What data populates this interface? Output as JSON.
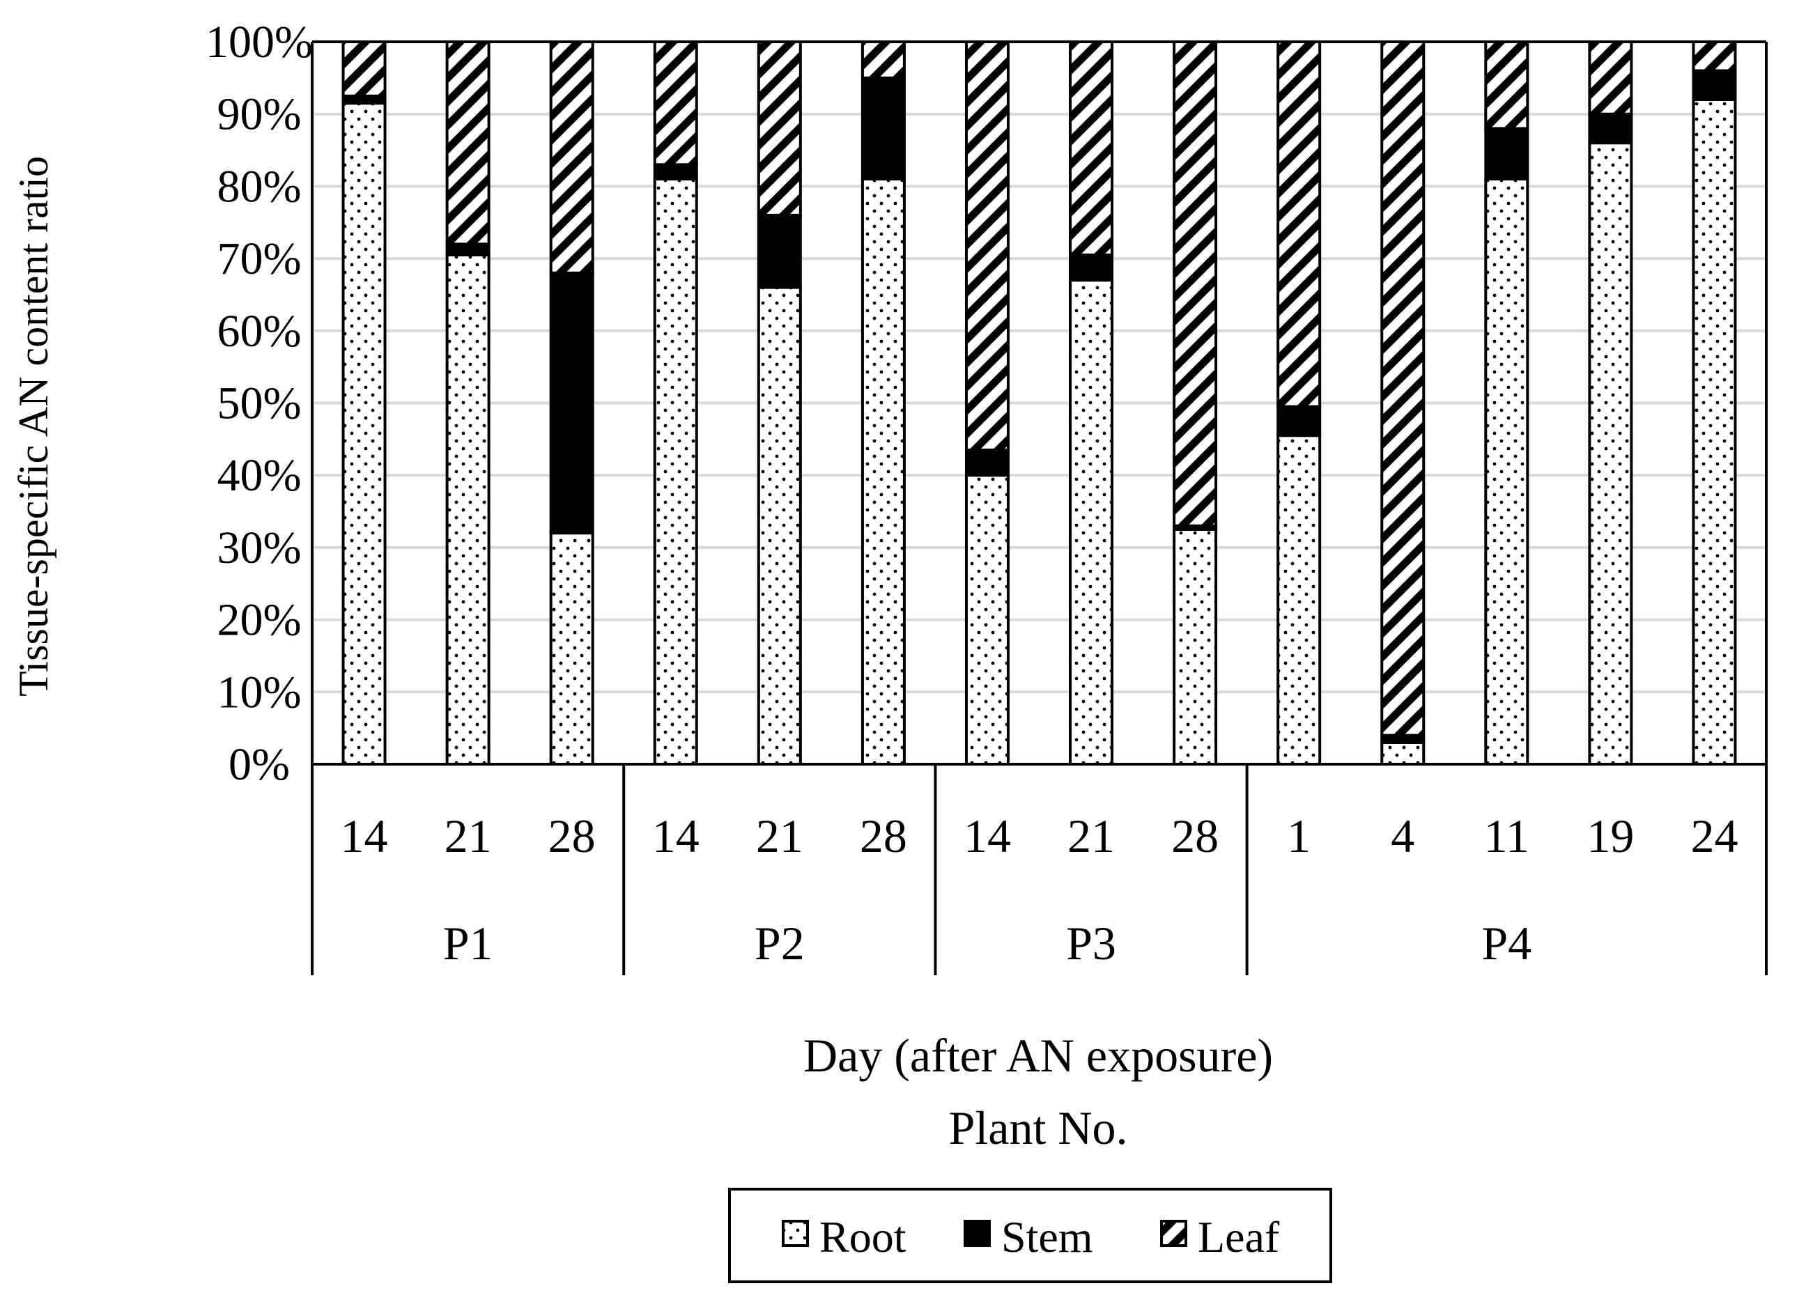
{
  "chart_data": {
    "type": "bar",
    "stacked": true,
    "ylabel": "Tissue-specific AN content ratio",
    "xlabel_line1": "Day (after AN exposure)",
    "xlabel_line2": "Plant No.",
    "ylim": [
      0,
      100
    ],
    "ytick_labels": [
      "0%",
      "10%",
      "20%",
      "30%",
      "40%",
      "50%",
      "60%",
      "70%",
      "80%",
      "90%",
      "100%"
    ],
    "grid": true,
    "legend_position": "bottom-center",
    "groups": [
      {
        "label": "P1",
        "days": [
          "14",
          "21",
          "28"
        ]
      },
      {
        "label": "P2",
        "days": [
          "14",
          "21",
          "28"
        ]
      },
      {
        "label": "P3",
        "days": [
          "14",
          "21",
          "28"
        ]
      },
      {
        "label": "P4",
        "days": [
          "1",
          "4",
          "11",
          "19",
          "24"
        ]
      }
    ],
    "categories": [
      "14",
      "21",
      "28",
      "14",
      "21",
      "28",
      "14",
      "21",
      "28",
      "1",
      "4",
      "11",
      "19",
      "24"
    ],
    "series": [
      {
        "name": "Root",
        "pattern": "dots",
        "values": [
          91.5,
          70.5,
          32,
          81,
          66,
          81,
          40,
          67,
          32.5,
          45.5,
          3,
          81,
          86,
          92
        ]
      },
      {
        "name": "Stem",
        "pattern": "solid",
        "values": [
          1,
          1.5,
          36,
          2,
          10,
          14,
          3.5,
          3.5,
          0.5,
          4,
          1,
          7,
          4,
          4
        ]
      },
      {
        "name": "Leaf",
        "pattern": "hatch",
        "values": [
          7.5,
          28,
          32,
          17,
          24,
          5,
          56.5,
          29.5,
          67,
          50.5,
          96,
          12,
          10,
          4
        ]
      }
    ],
    "colors": {
      "stem": "#000000",
      "grid": "#d9d9d9",
      "axis": "#000000"
    }
  }
}
